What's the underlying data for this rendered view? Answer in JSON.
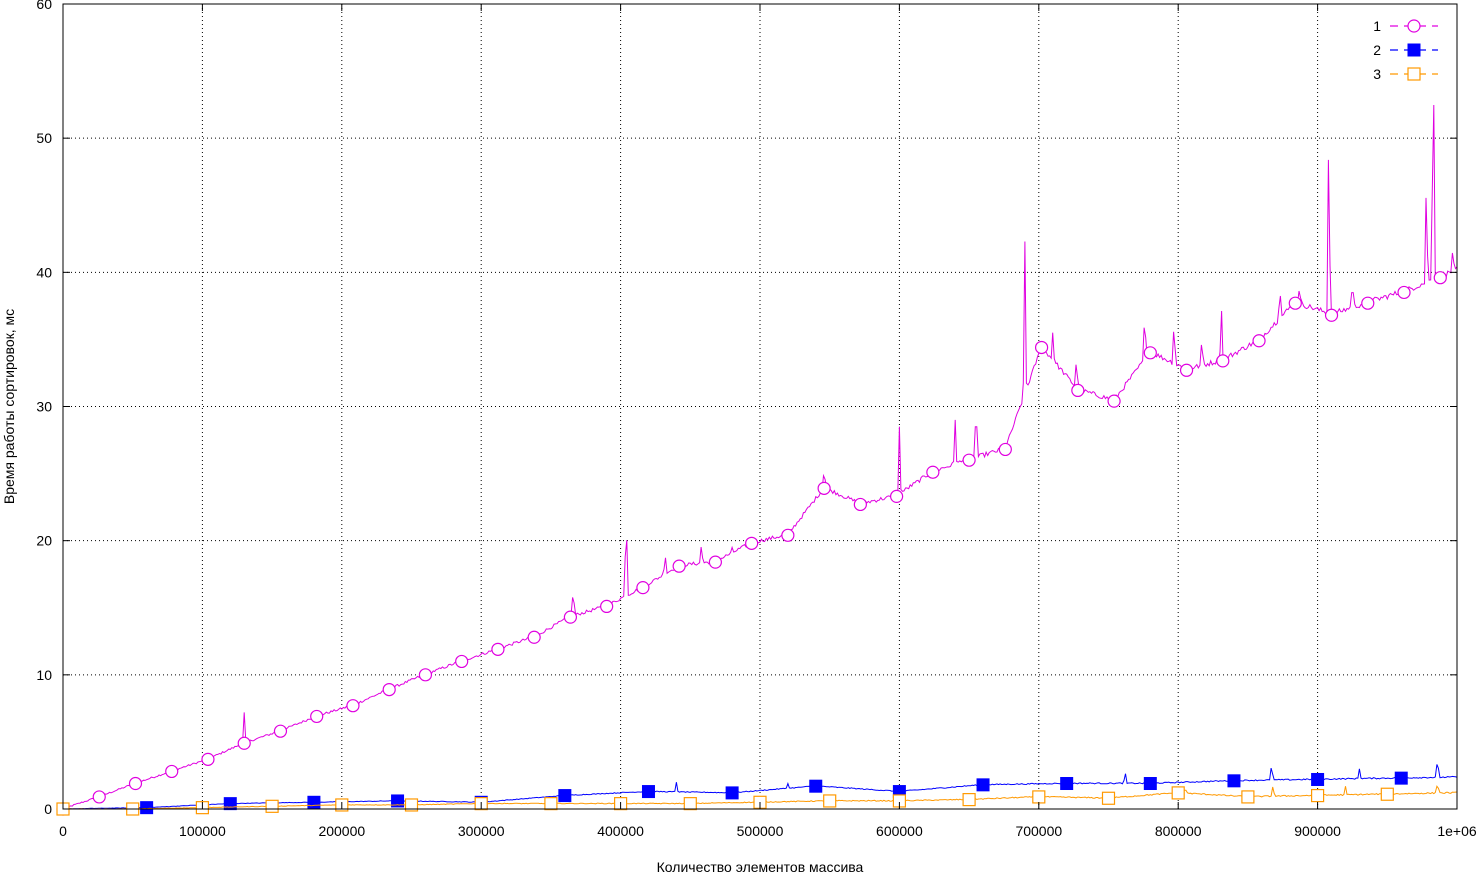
{
  "chart_data": {
    "type": "line",
    "title": "",
    "xlabel": "Количество элементов массива",
    "ylabel": "Время работы сортировок, мс",
    "xlim": [
      0,
      1000000
    ],
    "ylim": [
      0,
      60
    ],
    "x_ticks": [
      {
        "value": 0,
        "label": "0"
      },
      {
        "value": 100000,
        "label": "100000"
      },
      {
        "value": 200000,
        "label": "200000"
      },
      {
        "value": 300000,
        "label": "300000"
      },
      {
        "value": 400000,
        "label": "400000"
      },
      {
        "value": 500000,
        "label": "500000"
      },
      {
        "value": 600000,
        "label": "600000"
      },
      {
        "value": 700000,
        "label": "700000"
      },
      {
        "value": 800000,
        "label": "800000"
      },
      {
        "value": 900000,
        "label": "900000"
      },
      {
        "value": 1000000,
        "label": "1e+06"
      }
    ],
    "y_ticks": [
      {
        "value": 0,
        "label": "0"
      },
      {
        "value": 10,
        "label": "10"
      },
      {
        "value": 20,
        "label": "20"
      },
      {
        "value": 30,
        "label": "30"
      },
      {
        "value": 40,
        "label": "40"
      },
      {
        "value": 50,
        "label": "50"
      },
      {
        "value": 60,
        "label": "60"
      }
    ],
    "grid": true,
    "legend_position": "top-right",
    "series": [
      {
        "name": "1",
        "color": "#e000e0",
        "marker": "open-circle",
        "x": [
          0,
          26000,
          52000,
          78000,
          104000,
          130000,
          156000,
          182000,
          208000,
          234000,
          260000,
          286000,
          312000,
          338000,
          364000,
          390000,
          416000,
          442000,
          468000,
          494000,
          520000,
          546000,
          572000,
          598000,
          624000,
          650000,
          676000,
          702000,
          728000,
          754000,
          780000,
          806000,
          832000,
          858000,
          884000,
          910000,
          936000,
          962000,
          988000
        ],
        "y": [
          0,
          0.9,
          1.9,
          2.8,
          3.7,
          4.9,
          5.8,
          6.9,
          7.7,
          8.9,
          10.0,
          11.0,
          11.9,
          12.8,
          14.3,
          15.1,
          16.5,
          18.1,
          18.4,
          19.8,
          20.4,
          23.9,
          22.7,
          23.3,
          25.1,
          26.0,
          26.8,
          34.4,
          31.2,
          30.4,
          34.0,
          32.7,
          33.4,
          34.9,
          37.7,
          36.8,
          37.7,
          38.5,
          39.6
        ],
        "spikes": [
          {
            "x": 130000,
            "y": 7.2
          },
          {
            "x": 366000,
            "y": 16.6
          },
          {
            "x": 404000,
            "y": 22.5
          },
          {
            "x": 432000,
            "y": 19.0
          },
          {
            "x": 458000,
            "y": 19.8
          },
          {
            "x": 480000,
            "y": 19.5
          },
          {
            "x": 546000,
            "y": 25.4
          },
          {
            "x": 600000,
            "y": 28.5
          },
          {
            "x": 640000,
            "y": 29.0
          },
          {
            "x": 655000,
            "y": 30.5
          },
          {
            "x": 690000,
            "y": 42.3
          },
          {
            "x": 710000,
            "y": 35.5
          },
          {
            "x": 727000,
            "y": 33.8
          },
          {
            "x": 776000,
            "y": 37.3
          },
          {
            "x": 797000,
            "y": 36.5
          },
          {
            "x": 817000,
            "y": 35.2
          },
          {
            "x": 831000,
            "y": 37.5
          },
          {
            "x": 873000,
            "y": 38.9
          },
          {
            "x": 887000,
            "y": 39.0
          },
          {
            "x": 908000,
            "y": 51.0
          },
          {
            "x": 925000,
            "y": 39.5
          },
          {
            "x": 978000,
            "y": 47.0
          },
          {
            "x": 983000,
            "y": 57.5
          },
          {
            "x": 997000,
            "y": 42.0
          }
        ]
      },
      {
        "name": "2",
        "color": "#0000ff",
        "marker": "filled-square",
        "x": [
          0,
          60000,
          120000,
          180000,
          240000,
          300000,
          360000,
          420000,
          480000,
          540000,
          600000,
          660000,
          720000,
          780000,
          840000,
          900000,
          960000
        ],
        "y": [
          0,
          0.1,
          0.4,
          0.5,
          0.6,
          0.5,
          1.0,
          1.3,
          1.2,
          1.7,
          1.3,
          1.8,
          1.9,
          1.9,
          2.1,
          2.2,
          2.3
        ],
        "spikes": [
          {
            "x": 440000,
            "y": 2.0
          },
          {
            "x": 520000,
            "y": 1.9
          },
          {
            "x": 762000,
            "y": 2.8
          },
          {
            "x": 867000,
            "y": 3.4
          },
          {
            "x": 930000,
            "y": 3.0
          },
          {
            "x": 986000,
            "y": 3.9
          }
        ]
      },
      {
        "name": "3",
        "color": "#ff9900",
        "marker": "open-square",
        "x": [
          0,
          50000,
          100000,
          150000,
          200000,
          250000,
          300000,
          350000,
          400000,
          450000,
          500000,
          550000,
          600000,
          650000,
          700000,
          750000,
          800000,
          850000,
          900000,
          950000
        ],
        "y": [
          0,
          0.0,
          0.1,
          0.2,
          0.3,
          0.3,
          0.4,
          0.4,
          0.4,
          0.4,
          0.5,
          0.6,
          0.6,
          0.7,
          0.9,
          0.8,
          1.2,
          0.9,
          1.0,
          1.1
        ],
        "spikes": [
          {
            "x": 805000,
            "y": 1.6
          },
          {
            "x": 868000,
            "y": 1.8
          },
          {
            "x": 920000,
            "y": 1.7
          },
          {
            "x": 986000,
            "y": 2.0
          }
        ]
      }
    ]
  }
}
